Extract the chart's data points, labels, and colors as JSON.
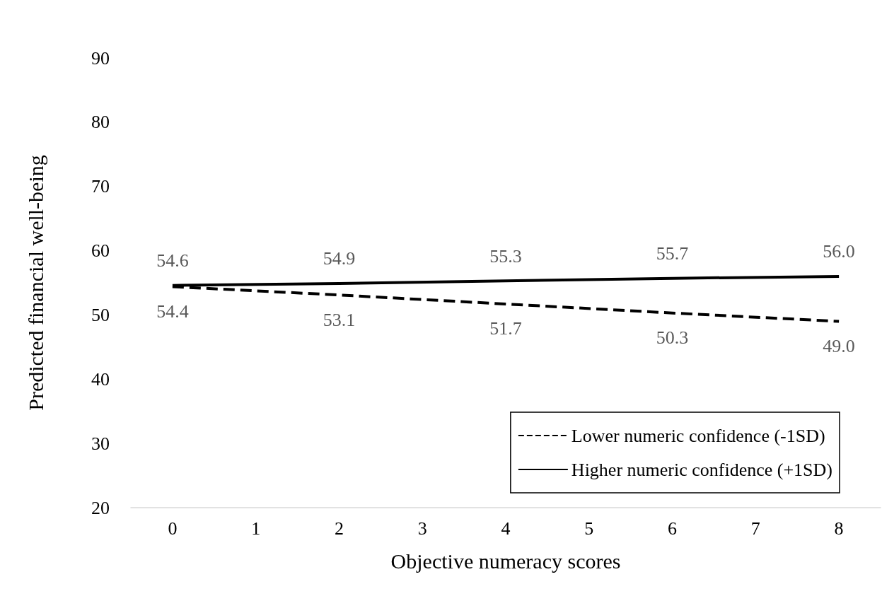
{
  "chart_data": {
    "type": "line",
    "xlabel": "Objective numeracy scores",
    "ylabel": "Predicted financial well-being",
    "xlim": [
      -0.5,
      8.5
    ],
    "xticks": [
      0,
      1,
      2,
      3,
      4,
      5,
      6,
      7,
      8
    ],
    "ylim": [
      20,
      90
    ],
    "yticks": [
      20,
      30,
      40,
      50,
      60,
      70,
      80,
      90
    ],
    "grid": false,
    "legend": "bottom right",
    "marker": "none",
    "series": [
      {
        "name": "Lower numeric confidence (-1SD)",
        "color": "#000000",
        "line_style": "dashed",
        "x": [
          0,
          2,
          4,
          6,
          8
        ],
        "values": [
          54.4,
          53.1,
          51.7,
          50.3,
          49.0
        ],
        "value_labels": [
          "54.4",
          "53.1",
          "51.7",
          "50.3",
          "49.0"
        ]
      },
      {
        "name": "Higher numeric confidence (+1SD)",
        "color": "#000000",
        "line_style": "solid",
        "x": [
          0,
          2,
          4,
          6,
          8
        ],
        "values": [
          54.6,
          54.9,
          55.3,
          55.7,
          56.0
        ],
        "value_labels": [
          "54.6",
          "54.9",
          "55.3",
          "55.7",
          "56.0"
        ]
      }
    ]
  }
}
